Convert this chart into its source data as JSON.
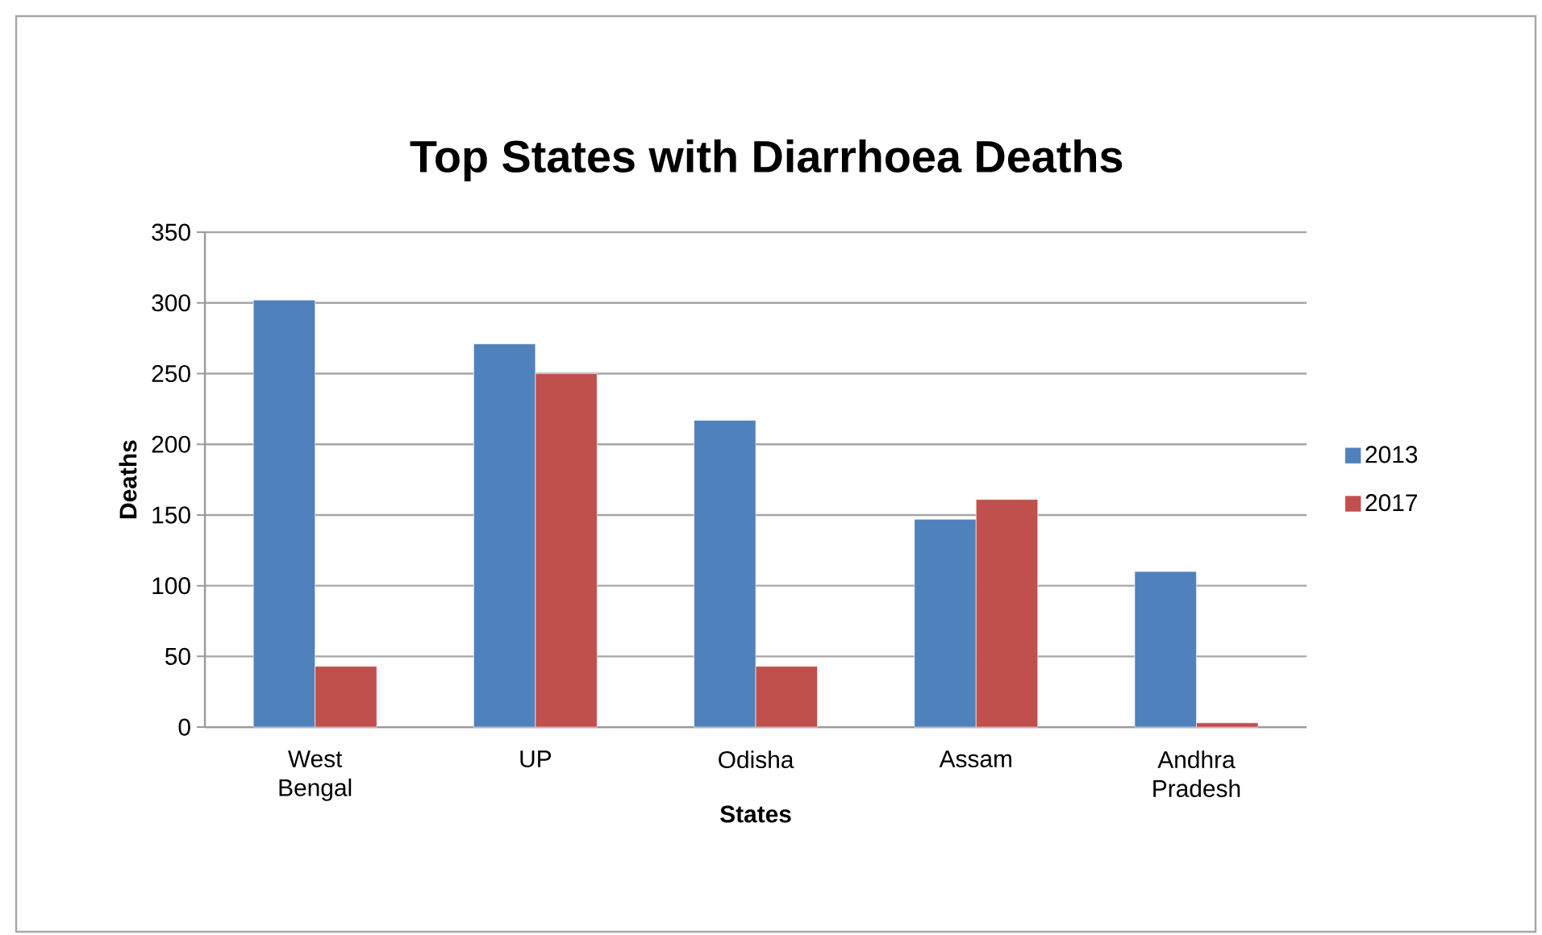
{
  "chart_data": {
    "type": "bar",
    "title": "Top States with Diarrhoea Deaths",
    "xlabel": "States",
    "ylabel": "Deaths",
    "categories": [
      "West Bengal",
      "UP",
      "Odisha",
      "Assam",
      "Andhra Pradesh"
    ],
    "series": [
      {
        "name": "2013",
        "color": "#4f81bd",
        "values": [
          302,
          271,
          217,
          147,
          110
        ]
      },
      {
        "name": "2017",
        "color": "#c0504d",
        "values": [
          43,
          250,
          43,
          161,
          3
        ]
      }
    ],
    "ylim": [
      0,
      350
    ],
    "yticks": [
      0,
      50,
      100,
      150,
      200,
      250,
      300,
      350
    ],
    "grid": "y",
    "legend": "right"
  }
}
